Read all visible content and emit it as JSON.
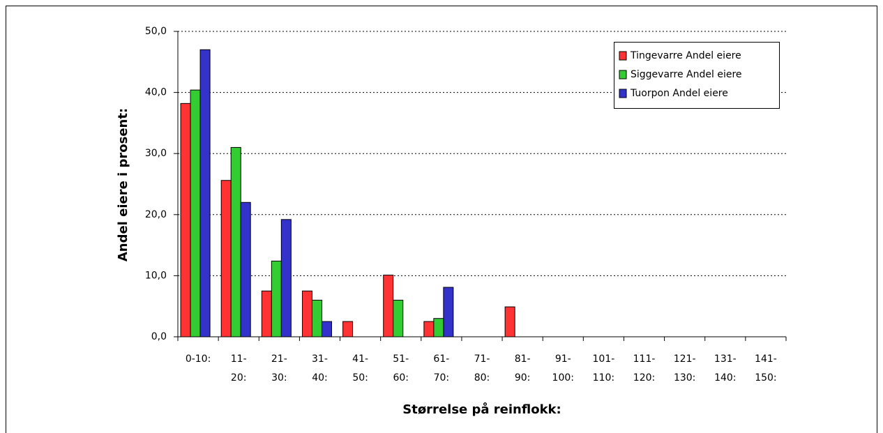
{
  "chart_data": {
    "type": "bar",
    "ylabel": "Andel eiere i prosent:",
    "xlabel": "Størrelse på reinflokk:",
    "categories": [
      "0-10:",
      "11-\n20:",
      "21-\n30:",
      "31-\n40:",
      "41-\n50:",
      "51-\n60:",
      "61-\n70:",
      "71-\n80:",
      "81-\n90:",
      "91-\n100:",
      "101-\n110:",
      "111-\n120:",
      "121-\n130:",
      "131-\n140:",
      "141-\n150:"
    ],
    "series": [
      {
        "name": "Tingevarre Andel eiere",
        "color": "#ff3333",
        "values": [
          38.2,
          25.6,
          7.5,
          7.5,
          2.5,
          10.1,
          2.5,
          0,
          4.9,
          0,
          0,
          0,
          0,
          0,
          0
        ]
      },
      {
        "name": "Siggevarre Andel eiere",
        "color": "#33cc33",
        "values": [
          40.4,
          31.0,
          12.4,
          6.0,
          0,
          6.0,
          3.0,
          0,
          0,
          0,
          0,
          0,
          0,
          0,
          0
        ]
      },
      {
        "name": "Tuorpon Andel eiere",
        "color": "#3333cc",
        "values": [
          47.0,
          22.0,
          19.2,
          2.5,
          0,
          0,
          8.1,
          0,
          0,
          0,
          0,
          0,
          0,
          0,
          0
        ]
      }
    ],
    "ylim": [
      0,
      50
    ],
    "yticks": [
      {
        "value": 0,
        "label": "0,0"
      },
      {
        "value": 10,
        "label": "10,0"
      },
      {
        "value": 20,
        "label": "20,0"
      },
      {
        "value": 30,
        "label": "30,0"
      },
      {
        "value": 40,
        "label": "40,0"
      },
      {
        "value": 50,
        "label": "50,0"
      }
    ],
    "grid": true,
    "legend": "upper right"
  }
}
